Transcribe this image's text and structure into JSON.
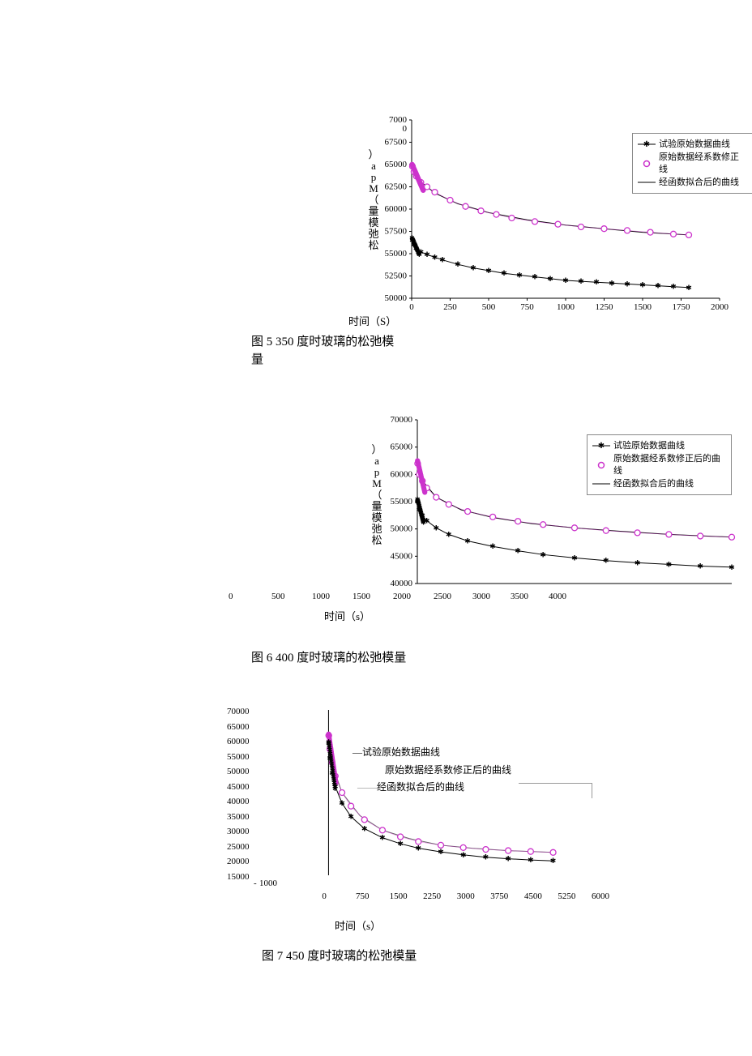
{
  "chart1": {
    "type": "line",
    "caption_line1": "图 5 350 度时玻璃的松弛模",
    "caption_line2": "量",
    "xlabel": "时间（S）",
    "ylabel_chars": [
      "）",
      "a",
      "p",
      "M",
      "（",
      "量",
      "模",
      "弛",
      "松"
    ],
    "xticks": [
      "0",
      "250",
      "500",
      "750",
      "1000",
      "1250",
      "1500",
      "1750",
      "2000"
    ],
    "yticks": [
      "70000",
      "67500",
      "65000",
      "62500",
      "60000",
      "57500",
      "55000",
      "52500",
      "50000"
    ],
    "xlim": [
      0,
      2000
    ],
    "ylim": [
      50000,
      70000
    ],
    "legend": {
      "item1": "试验原始数据曲线",
      "item2_l1": "原始数据经系数修正",
      "item2_l2": "线",
      "item3": "经函数拟合后的曲线"
    },
    "colors": {
      "series_raw": "#000000",
      "series_corrected": "#cc33cc",
      "series_fit": "#000000",
      "marker_stroke": "#cc33cc",
      "marker_fill": "#ffffff",
      "axis": "#000000",
      "bg": "#ffffff"
    },
    "series_raw": [
      [
        5,
        56500
      ],
      [
        15,
        56000
      ],
      [
        30,
        55600
      ],
      [
        60,
        55200
      ],
      [
        100,
        54900
      ],
      [
        150,
        54600
      ],
      [
        200,
        54300
      ],
      [
        300,
        53800
      ],
      [
        400,
        53400
      ],
      [
        500,
        53100
      ],
      [
        600,
        52800
      ],
      [
        700,
        52600
      ],
      [
        800,
        52400
      ],
      [
        900,
        52200
      ],
      [
        1000,
        52000
      ],
      [
        1100,
        51900
      ],
      [
        1200,
        51800
      ],
      [
        1300,
        51700
      ],
      [
        1400,
        51600
      ],
      [
        1500,
        51500
      ],
      [
        1600,
        51400
      ],
      [
        1700,
        51300
      ],
      [
        1800,
        51200
      ]
    ],
    "series_corrected": [
      [
        5,
        64800
      ],
      [
        15,
        64200
      ],
      [
        30,
        63700
      ],
      [
        60,
        63000
      ],
      [
        100,
        62500
      ],
      [
        150,
        61900
      ],
      [
        250,
        61000
      ],
      [
        350,
        60300
      ],
      [
        450,
        59800
      ],
      [
        550,
        59400
      ],
      [
        650,
        59000
      ],
      [
        800,
        58600
      ],
      [
        950,
        58300
      ],
      [
        1100,
        58000
      ],
      [
        1250,
        57800
      ],
      [
        1400,
        57600
      ],
      [
        1550,
        57400
      ],
      [
        1700,
        57200
      ],
      [
        1800,
        57100
      ]
    ],
    "series_fit": [
      [
        5,
        65000
      ],
      [
        50,
        63200
      ],
      [
        150,
        61800
      ],
      [
        300,
        60600
      ],
      [
        500,
        59600
      ],
      [
        750,
        58800
      ],
      [
        1000,
        58200
      ],
      [
        1250,
        57800
      ],
      [
        1500,
        57400
      ],
      [
        1800,
        57100
      ]
    ]
  },
  "chart2": {
    "type": "line",
    "caption": "图 6 400 度时玻璃的松弛模量",
    "xlabel": "时间（s）",
    "ylabel_chars": [
      "）",
      "a",
      "p",
      "M",
      "（",
      "量",
      "模",
      "弛",
      "松"
    ],
    "xticks": [
      "0",
      "500",
      "1000",
      "1500",
      "2000",
      "2500",
      "3000",
      "3500",
      "4000"
    ],
    "yticks": [
      "70000",
      "65000",
      "60000",
      "55000",
      "50000",
      "45000",
      "40000"
    ],
    "xlim": [
      0,
      5000
    ],
    "ylim": [
      40000,
      70000
    ],
    "legend": {
      "item1": "试验原始数据曲线",
      "item2_l1": "原始数据经系数修正后的曲",
      "item2_l2": "线",
      "item3": "经函数拟合后的曲线"
    },
    "colors": {
      "series_raw": "#000000",
      "series_corrected": "#cc33cc",
      "series_fit": "#000000",
      "marker_stroke": "#cc33cc",
      "axis": "#000000",
      "bg": "#ffffff"
    },
    "series_raw": [
      [
        5,
        55000
      ],
      [
        30,
        53500
      ],
      [
        80,
        52500
      ],
      [
        150,
        51500
      ],
      [
        300,
        50200
      ],
      [
        500,
        49000
      ],
      [
        800,
        47800
      ],
      [
        1200,
        46800
      ],
      [
        1600,
        46000
      ],
      [
        2000,
        45300
      ],
      [
        2500,
        44700
      ],
      [
        3000,
        44200
      ],
      [
        3500,
        43800
      ],
      [
        4000,
        43500
      ],
      [
        4500,
        43200
      ],
      [
        5000,
        43000
      ]
    ],
    "series_corrected": [
      [
        5,
        62000
      ],
      [
        30,
        60000
      ],
      [
        80,
        58800
      ],
      [
        150,
        57500
      ],
      [
        300,
        55800
      ],
      [
        500,
        54500
      ],
      [
        800,
        53200
      ],
      [
        1200,
        52200
      ],
      [
        1600,
        51400
      ],
      [
        2000,
        50800
      ],
      [
        2500,
        50200
      ],
      [
        3000,
        49700
      ],
      [
        3500,
        49300
      ],
      [
        4000,
        49000
      ],
      [
        4500,
        48700
      ],
      [
        5000,
        48500
      ]
    ],
    "series_fit": [
      [
        5,
        62500
      ],
      [
        100,
        58600
      ],
      [
        300,
        55800
      ],
      [
        700,
        53500
      ],
      [
        1200,
        52100
      ],
      [
        1800,
        51000
      ],
      [
        2500,
        50200
      ],
      [
        3200,
        49600
      ],
      [
        4000,
        49000
      ],
      [
        5000,
        48500
      ]
    ]
  },
  "chart3": {
    "type": "line",
    "caption": "图 7 450 度时玻璃的松弛模量",
    "xlabel": "时间（s）",
    "xticks_row1": [
      "-",
      "1000"
    ],
    "xticks_row2": [
      "0",
      "750",
      "1500",
      "2250",
      "3000",
      "3750",
      "4500",
      "5250",
      "6000"
    ],
    "yticks": [
      "70000",
      "65000",
      "60000",
      "55000",
      "50000",
      "45000",
      "40000",
      "35000",
      "30000",
      "25000",
      "20000",
      "15000"
    ],
    "xlim": [
      -1000,
      6000
    ],
    "ylim": [
      15000,
      70000
    ],
    "legend": {
      "item1": "试验原始数据曲线",
      "item2": "原始数据经系数修正后的曲线",
      "item3": "经函数拟合后的曲线"
    },
    "colors": {
      "series_raw": "#000000",
      "series_corrected": "#cc33cc",
      "series_fit": "#666666",
      "marker_stroke": "#cc33cc",
      "axis": "#000000",
      "bg": "#ffffff"
    },
    "series_raw": [
      [
        5,
        59000
      ],
      [
        30,
        54000
      ],
      [
        80,
        49000
      ],
      [
        150,
        44500
      ],
      [
        300,
        39000
      ],
      [
        500,
        34500
      ],
      [
        800,
        30500
      ],
      [
        1200,
        27500
      ],
      [
        1600,
        25500
      ],
      [
        2000,
        24000
      ],
      [
        2500,
        22800
      ],
      [
        3000,
        21800
      ],
      [
        3500,
        21000
      ],
      [
        4000,
        20500
      ],
      [
        4500,
        20100
      ],
      [
        5000,
        19800
      ]
    ],
    "series_corrected": [
      [
        5,
        61500
      ],
      [
        30,
        57000
      ],
      [
        80,
        52500
      ],
      [
        150,
        48000
      ],
      [
        300,
        42500
      ],
      [
        500,
        38000
      ],
      [
        800,
        33500
      ],
      [
        1200,
        30000
      ],
      [
        1600,
        27800
      ],
      [
        2000,
        26200
      ],
      [
        2500,
        25000
      ],
      [
        3000,
        24200
      ],
      [
        3500,
        23600
      ],
      [
        4000,
        23200
      ],
      [
        4500,
        22900
      ],
      [
        5000,
        22600
      ]
    ],
    "series_fit": [
      [
        5,
        62000
      ],
      [
        100,
        51000
      ],
      [
        300,
        42500
      ],
      [
        700,
        34800
      ],
      [
        1200,
        30000
      ],
      [
        1800,
        27200
      ],
      [
        2500,
        25000
      ],
      [
        3200,
        24000
      ],
      [
        4000,
        23200
      ],
      [
        5000,
        22600
      ]
    ]
  }
}
